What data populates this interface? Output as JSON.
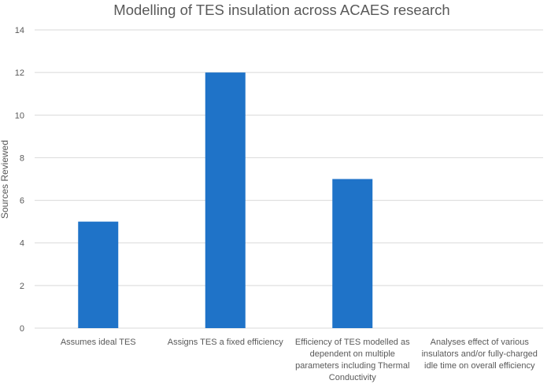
{
  "chart_data": {
    "type": "bar",
    "title": "Modelling of TES insulation across ACAES research",
    "xlabel": "",
    "ylabel": "Sources Reviewed",
    "ylim": [
      0,
      14
    ],
    "yticks": [
      0,
      2,
      4,
      6,
      8,
      10,
      12,
      14
    ],
    "grid": true,
    "legend": "none",
    "categories": [
      [
        "Assumes ideal TES"
      ],
      [
        "Assigns TES a fixed efficiency"
      ],
      [
        "Efficiency of TES modelled as",
        "dependent on multiple",
        "parameters including Thermal",
        "Conductivity"
      ],
      [
        "Analyses effect of various",
        "insulators and/or fully-charged",
        "idle time on overall efficiency"
      ]
    ],
    "values": [
      5,
      12,
      7,
      0
    ],
    "colors": {
      "bar": "#1f73c8",
      "grid": "#d9d9d9",
      "text": "#595959"
    }
  }
}
